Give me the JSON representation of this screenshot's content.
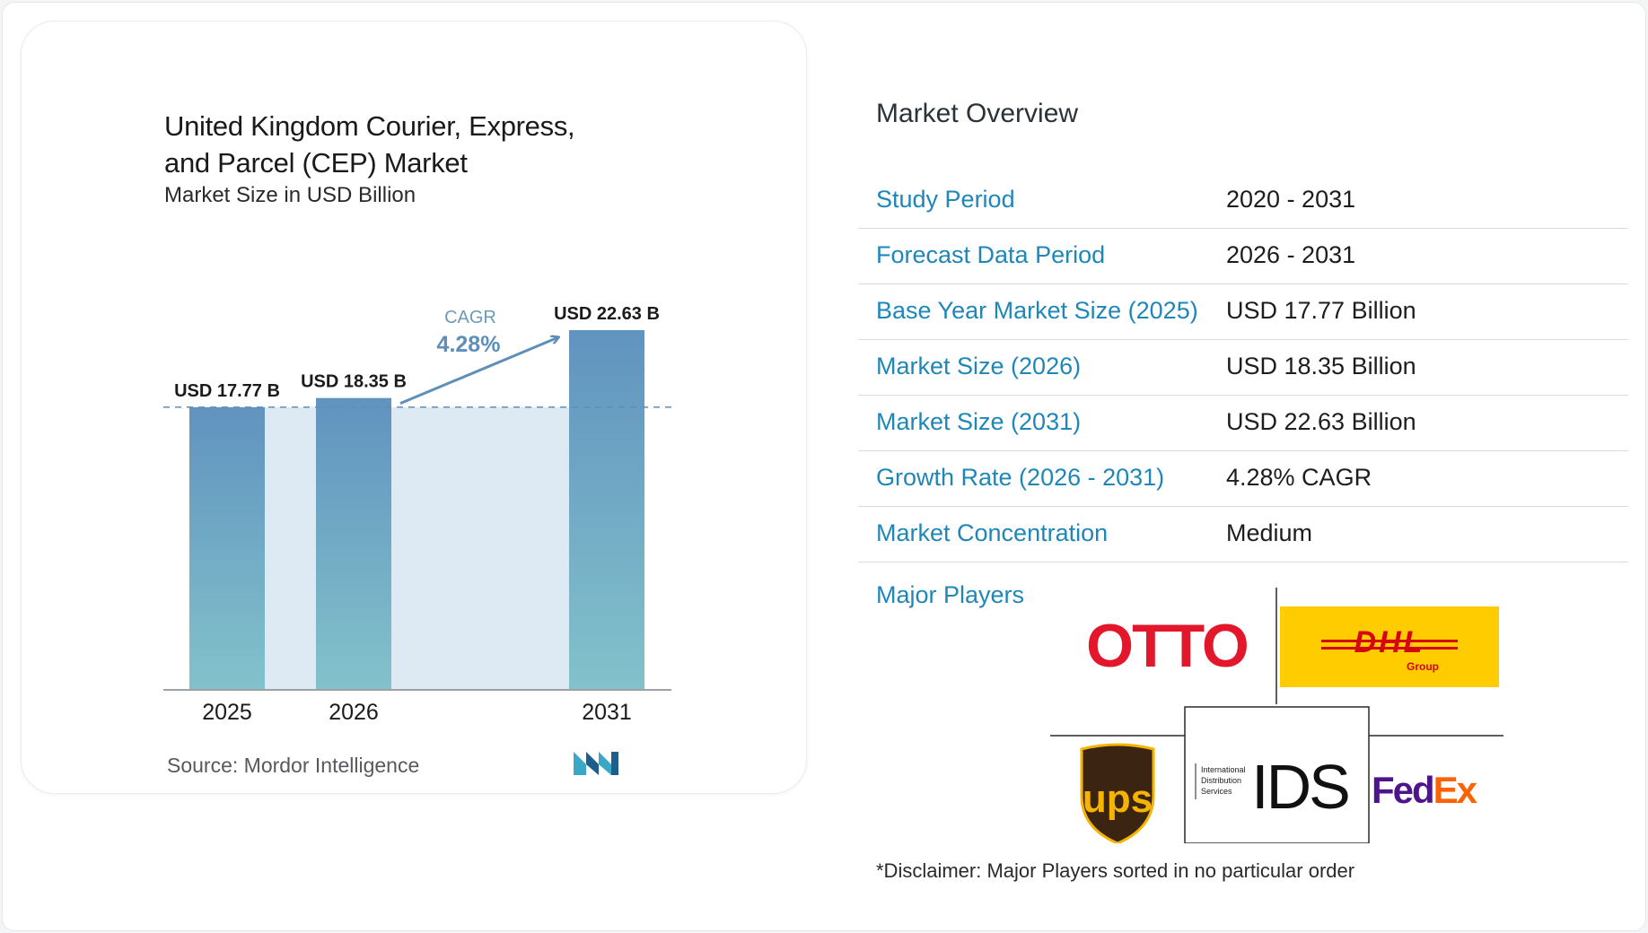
{
  "chart_data": {
    "type": "bar",
    "title": "United Kingdom Courier, Express,\nand Parcel (CEP) Market",
    "subtitle": "Market Size in USD Billion",
    "categories": [
      "2025",
      "2026",
      "2031"
    ],
    "values": [
      17.77,
      18.35,
      22.63
    ],
    "data_labels": [
      "USD 17.77 B",
      "USD 18.35 B",
      "USD 22.63 B"
    ],
    "annotation": {
      "label": "CAGR",
      "value": "4.28%"
    },
    "source": "Source:  Mordor Intelligence",
    "gradient": [
      "#6193bf",
      "#82c2cb"
    ],
    "band_color": "#deeaf3"
  },
  "overview": {
    "title": "Market Overview",
    "rows": [
      {
        "label": "Study Period",
        "value": "2020 - 2031"
      },
      {
        "label": "Forecast Data Period",
        "value": "2026 - 2031"
      },
      {
        "label": "Base Year Market Size (2025)",
        "value": "USD 17.77 Billion"
      },
      {
        "label": "Market Size (2026)",
        "value": "USD 18.35 Billion"
      },
      {
        "label": "Market Size (2031)",
        "value": "USD 22.63 Billion"
      },
      {
        "label": "Growth Rate (2026 - 2031)",
        "value": "4.28% CAGR"
      },
      {
        "label": "Market Concentration",
        "value": "Medium"
      }
    ],
    "major_players_label": "Major Players",
    "players": [
      {
        "name": "OTTO",
        "icon": "otto-logo"
      },
      {
        "name": "DHL Group",
        "icon": "dhl-group-logo"
      },
      {
        "name": "UPS",
        "icon": "ups-logo"
      },
      {
        "name": "International Distribution Services IDS",
        "icon": "ids-logo"
      },
      {
        "name": "FedEx",
        "icon": "fedex-logo"
      }
    ],
    "logo_text": {
      "otto": "OTTO",
      "dhl": "DHL",
      "dhl_sub": "Group",
      "ups": "ups",
      "ids_small": [
        "International",
        "Distribution",
        "Services"
      ],
      "ids": "IDS",
      "fedex_fed": "Fed",
      "fedex_ex": "Ex"
    },
    "disclaimer": "*Disclaimer: Major Players sorted in no particular order"
  }
}
